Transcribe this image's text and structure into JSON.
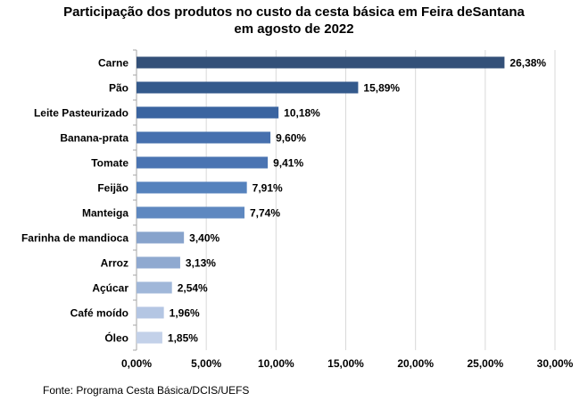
{
  "chart_data": {
    "type": "bar",
    "orientation": "horizontal",
    "title_lines": [
      "Participação dos produtos no custo da cesta básica em Feira deSantana",
      "em agosto de 2022"
    ],
    "categories": [
      "Carne",
      "Pão",
      "Leite Pasteurizado",
      "Banana-prata",
      "Tomate",
      "Feijão",
      "Manteiga",
      "Farinha de mandioca",
      "Arroz",
      "Açúcar",
      "Café moído",
      "Óleo"
    ],
    "values": [
      26.38,
      15.89,
      10.18,
      9.6,
      9.41,
      7.91,
      7.74,
      3.4,
      3.13,
      2.54,
      1.96,
      1.85
    ],
    "data_labels": [
      "26,38%",
      "15,89%",
      "10,18%",
      "9,60%",
      "9,41%",
      "7,91%",
      "7,74%",
      "3,40%",
      "3,13%",
      "2,54%",
      "1,96%",
      "1,85%"
    ],
    "bar_colors": [
      "#335078",
      "#345a8c",
      "#3a64a0",
      "#4670ae",
      "#4a74b2",
      "#5582bd",
      "#5e88c0",
      "#87a3cc",
      "#8fa9d0",
      "#a0b7d9",
      "#b4c6e3",
      "#c3d1e9"
    ],
    "xlim": [
      0,
      30
    ],
    "x_ticks": [
      0,
      5,
      10,
      15,
      20,
      25,
      30
    ],
    "x_tick_labels": [
      "0,00%",
      "5,00%",
      "10,00%",
      "15,00%",
      "20,00%",
      "25,00%",
      "30,00%"
    ],
    "grid": true,
    "legend": "none"
  },
  "source_note": "Fonte: Programa Cesta Básica/DCIS/UEFS"
}
